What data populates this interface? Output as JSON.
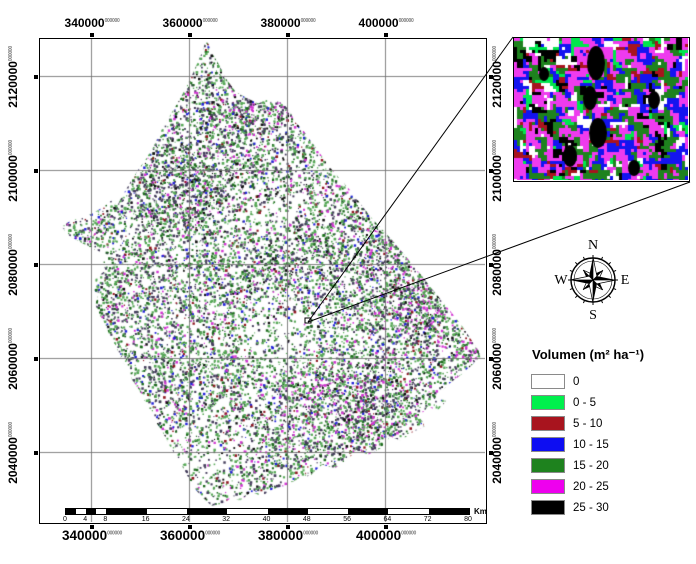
{
  "axes": {
    "top": [
      "340000",
      "360000",
      "380000",
      "400000"
    ],
    "bottom": [
      "340000",
      "360000",
      "380000",
      "400000"
    ],
    "left": [
      "2120000",
      "2100000",
      "2080000",
      "2060000",
      "2040000"
    ],
    "right": [
      "2120000",
      "2100000",
      "2080000",
      "2060000",
      "2040000"
    ],
    "label_superscript": "000000"
  },
  "scalebar": {
    "tick_labels": [
      "0",
      "4",
      "8",
      "16",
      "24",
      "32",
      "40",
      "48",
      "56",
      "64",
      "72",
      "80"
    ],
    "unit": "Km"
  },
  "compass": {
    "north": "N",
    "east": "E",
    "south": "S",
    "west": "W"
  },
  "legend": {
    "title": "Volumen (m² ha⁻¹)",
    "items": [
      {
        "label": "0",
        "color": "#FFFFFF"
      },
      {
        "label": "0 - 5",
        "color": "#00F04D"
      },
      {
        "label": "5 - 10",
        "color": "#A8141E"
      },
      {
        "label": "10 - 15",
        "color": "#0D0DF2"
      },
      {
        "label": "15 - 20",
        "color": "#1E821E"
      },
      {
        "label": "20 - 25",
        "color": "#EE00EE"
      },
      {
        "label": "25 - 30",
        "color": "#000000"
      }
    ]
  },
  "map": {
    "background": "#FFFFFF",
    "grid_color": "#6F6F6F",
    "speckle_palette": {
      "light_green": "#57A857",
      "dark_slate": "#453E5C",
      "dark_green": "#1F6B1F",
      "magenta": "#D235D2",
      "blue": "#2020D8",
      "dark_red": "#8E1620",
      "black": "#101010"
    },
    "inset_palette": {
      "magenta": "#EE3BEE",
      "forest_green": "#1E821E",
      "blue": "#1414F0",
      "black": "#000000",
      "white": "#FFFFFF",
      "spring_green": "#00E64D",
      "dark_red": "#A8141E"
    }
  }
}
